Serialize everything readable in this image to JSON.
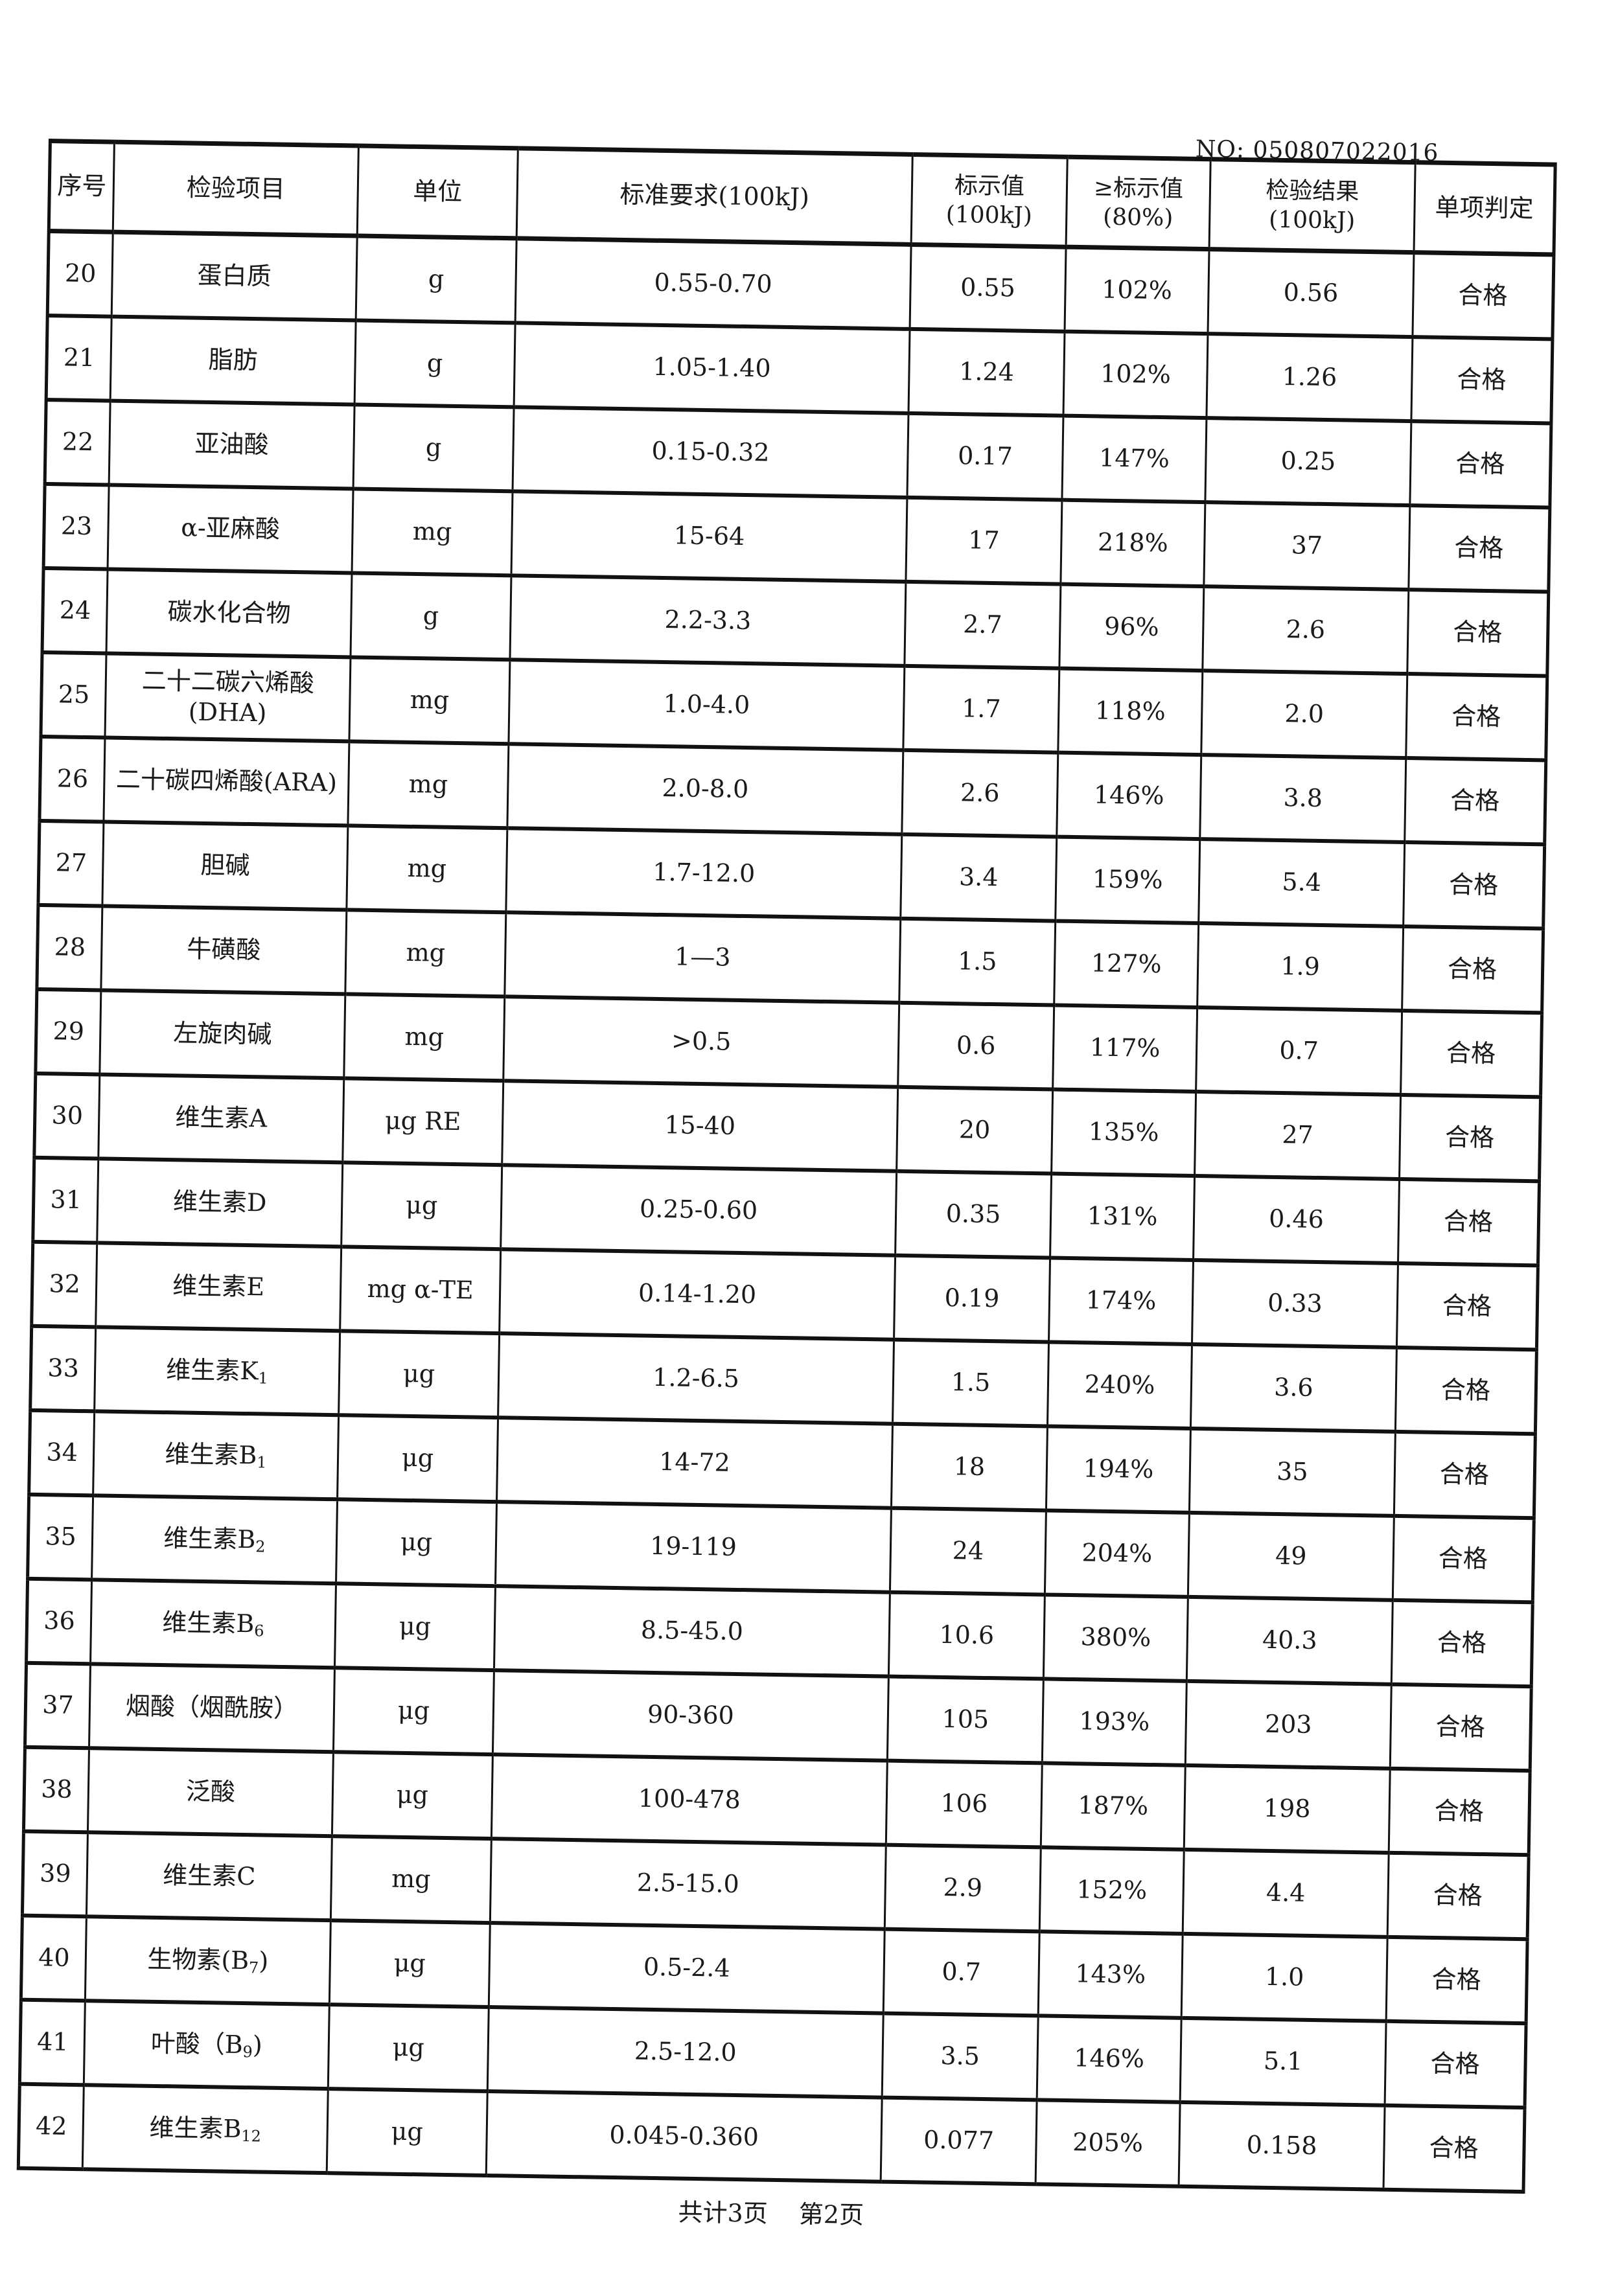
{
  "document_no": "NO: 050807022016",
  "headers": [
    "序号",
    "检验项目",
    "单位",
    "标准要求(100kJ)",
    "标示值\n(100kJ)",
    "≥标示值\n(80%)",
    "检验结果\n(100kJ)",
    "单项判定"
  ],
  "rows": [
    {
      "no": "20",
      "item": "蛋白质",
      "sub": "",
      "suffix": "",
      "unit": "g",
      "standard": "0.55-0.70",
      "label": "0.55",
      "pct": "102%",
      "result": "0.56",
      "verdict": "合格"
    },
    {
      "no": "21",
      "item": "脂肪",
      "sub": "",
      "suffix": "",
      "unit": "g",
      "standard": "1.05-1.40",
      "label": "1.24",
      "pct": "102%",
      "result": "1.26",
      "verdict": "合格"
    },
    {
      "no": "22",
      "item": "亚油酸",
      "sub": "",
      "suffix": "",
      "unit": "g",
      "standard": "0.15-0.32",
      "label": "0.17",
      "pct": "147%",
      "result": "0.25",
      "verdict": "合格"
    },
    {
      "no": "23",
      "item": "α-亚麻酸",
      "sub": "",
      "suffix": "",
      "unit": "mg",
      "standard": "15-64",
      "label": "17",
      "pct": "218%",
      "result": "37",
      "verdict": "合格"
    },
    {
      "no": "24",
      "item": "碳水化合物",
      "sub": "",
      "suffix": "",
      "unit": "g",
      "standard": "2.2-3.3",
      "label": "2.7",
      "pct": "96%",
      "result": "2.6",
      "verdict": "合格"
    },
    {
      "no": "25",
      "item": "二十二碳六烯酸\n(DHA)",
      "sub": "",
      "suffix": "",
      "unit": "mg",
      "standard": "1.0-4.0",
      "label": "1.7",
      "pct": "118%",
      "result": "2.0",
      "verdict": "合格"
    },
    {
      "no": "26",
      "item": "二十碳四烯酸(ARA)",
      "sub": "",
      "suffix": "",
      "unit": "mg",
      "standard": "2.0-8.0",
      "label": "2.6",
      "pct": "146%",
      "result": "3.8",
      "verdict": "合格"
    },
    {
      "no": "27",
      "item": "胆碱",
      "sub": "",
      "suffix": "",
      "unit": "mg",
      "standard": "1.7-12.0",
      "label": "3.4",
      "pct": "159%",
      "result": "5.4",
      "verdict": "合格"
    },
    {
      "no": "28",
      "item": "牛磺酸",
      "sub": "",
      "suffix": "",
      "unit": "mg",
      "standard": "1—3",
      "label": "1.5",
      "pct": "127%",
      "result": "1.9",
      "verdict": "合格"
    },
    {
      "no": "29",
      "item": "左旋肉碱",
      "sub": "",
      "suffix": "",
      "unit": "mg",
      "standard": ">0.5",
      "label": "0.6",
      "pct": "117%",
      "result": "0.7",
      "verdict": "合格"
    },
    {
      "no": "30",
      "item": "维生素A",
      "sub": "",
      "suffix": "",
      "unit": "μg RE",
      "standard": "15-40",
      "label": "20",
      "pct": "135%",
      "result": "27",
      "verdict": "合格"
    },
    {
      "no": "31",
      "item": "维生素D",
      "sub": "",
      "suffix": "",
      "unit": "μg",
      "standard": "0.25-0.60",
      "label": "0.35",
      "pct": "131%",
      "result": "0.46",
      "verdict": "合格"
    },
    {
      "no": "32",
      "item": "维生素E",
      "sub": "",
      "suffix": "",
      "unit": "mg α-TE",
      "standard": "0.14-1.20",
      "label": "0.19",
      "pct": "174%",
      "result": "0.33",
      "verdict": "合格"
    },
    {
      "no": "33",
      "item": "维生素K",
      "sub": "1",
      "suffix": "",
      "unit": "μg",
      "standard": "1.2-6.5",
      "label": "1.5",
      "pct": "240%",
      "result": "3.6",
      "verdict": "合格"
    },
    {
      "no": "34",
      "item": "维生素B",
      "sub": "1",
      "suffix": "",
      "unit": "μg",
      "standard": "14-72",
      "label": "18",
      "pct": "194%",
      "result": "35",
      "verdict": "合格"
    },
    {
      "no": "35",
      "item": "维生素B",
      "sub": "2",
      "suffix": "",
      "unit": "μg",
      "standard": "19-119",
      "label": "24",
      "pct": "204%",
      "result": "49",
      "verdict": "合格"
    },
    {
      "no": "36",
      "item": "维生素B",
      "sub": "6",
      "suffix": "",
      "unit": "μg",
      "standard": "8.5-45.0",
      "label": "10.6",
      "pct": "380%",
      "result": "40.3",
      "verdict": "合格"
    },
    {
      "no": "37",
      "item": "烟酸（烟酰胺）",
      "sub": "",
      "suffix": "",
      "unit": "μg",
      "standard": "90-360",
      "label": "105",
      "pct": "193%",
      "result": "203",
      "verdict": "合格"
    },
    {
      "no": "38",
      "item": "泛酸",
      "sub": "",
      "suffix": "",
      "unit": "μg",
      "standard": "100-478",
      "label": "106",
      "pct": "187%",
      "result": "198",
      "verdict": "合格"
    },
    {
      "no": "39",
      "item": "维生素C",
      "sub": "",
      "suffix": "",
      "unit": "mg",
      "standard": "2.5-15.0",
      "label": "2.9",
      "pct": "152%",
      "result": "4.4",
      "verdict": "合格"
    },
    {
      "no": "40",
      "item": "生物素(B",
      "sub": "7",
      "suffix": ")",
      "unit": "μg",
      "standard": "0.5-2.4",
      "label": "0.7",
      "pct": "143%",
      "result": "1.0",
      "verdict": "合格"
    },
    {
      "no": "41",
      "item": "叶酸（B",
      "sub": "9",
      "suffix": ")",
      "unit": "μg",
      "standard": "2.5-12.0",
      "label": "3.5",
      "pct": "146%",
      "result": "5.1",
      "verdict": "合格"
    },
    {
      "no": "42",
      "item": "维生素B",
      "sub": "12",
      "suffix": "",
      "unit": "μg",
      "standard": "0.045-0.360",
      "label": "0.077",
      "pct": "205%",
      "result": "0.158",
      "verdict": "合格"
    }
  ],
  "footer": {
    "total_pages": "共计3页",
    "current_page": "第2页"
  }
}
